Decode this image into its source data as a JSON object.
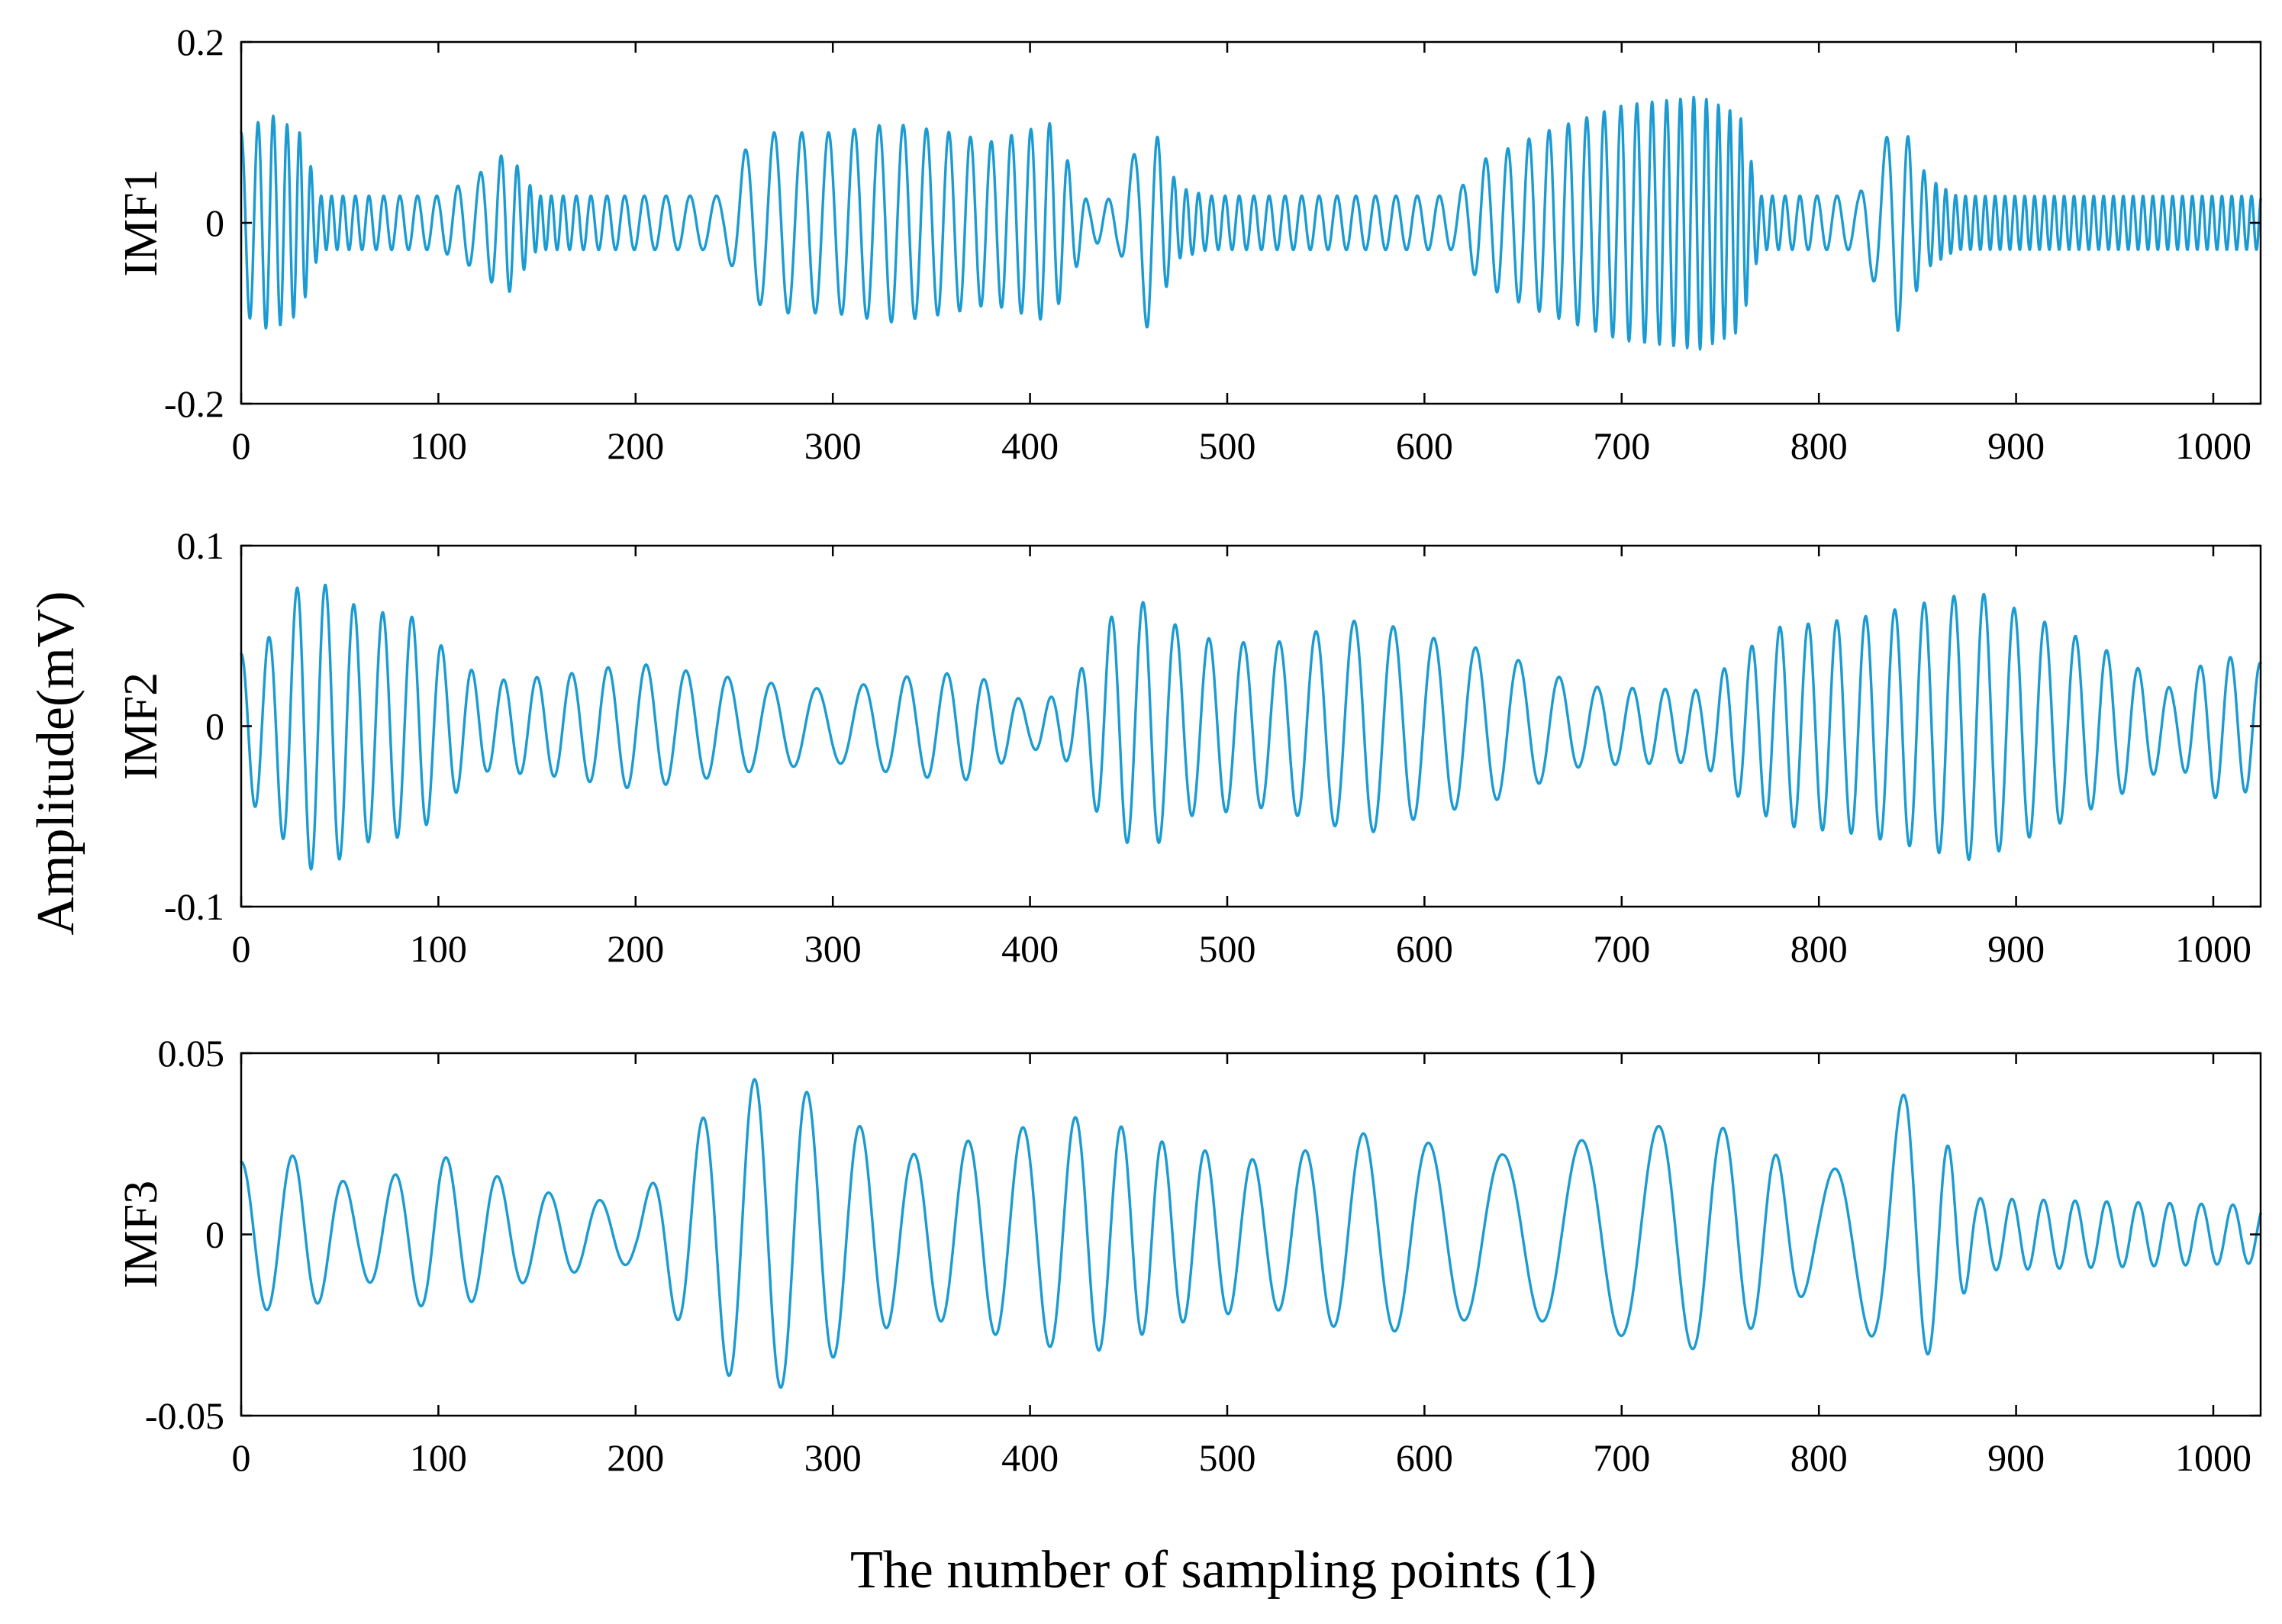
{
  "chart_data": [
    {
      "type": "line",
      "panel": "IMF1",
      "ylabel": "IMF1",
      "xlim": [
        0,
        1024
      ],
      "ylim": [
        -0.2,
        0.2
      ],
      "yticks": [
        -0.2,
        0,
        0.2
      ],
      "ytick_labels": [
        "-0.2",
        "0",
        "0.2"
      ],
      "xticks": [
        0,
        100,
        200,
        300,
        400,
        500,
        600,
        700,
        800,
        900,
        1000
      ],
      "xtick_labels": [
        "0",
        "100",
        "200",
        "300",
        "400",
        "500",
        "600",
        "700",
        "800",
        "900",
        "1000"
      ],
      "series": [
        {
          "name": "IMF1",
          "envelope": [
            [
              0,
              0.1
            ],
            [
              15,
              0.12
            ],
            [
              30,
              0.1
            ],
            [
              40,
              0.03
            ],
            [
              100,
              0.03
            ],
            [
              118,
              0.05
            ],
            [
              135,
              0.08
            ],
            [
              150,
              0.03
            ],
            [
              245,
              0.03
            ],
            [
              255,
              0.08
            ],
            [
              270,
              0.1
            ],
            [
              300,
              0.1
            ],
            [
              330,
              0.11
            ],
            [
              360,
              0.1
            ],
            [
              380,
              0.09
            ],
            [
              410,
              0.11
            ],
            [
              430,
              0.02
            ],
            [
              445,
              0.03
            ],
            [
              460,
              0.12
            ],
            [
              475,
              0.04
            ],
            [
              490,
              0.03
            ],
            [
              615,
              0.03
            ],
            [
              630,
              0.07
            ],
            [
              660,
              0.1
            ],
            [
              700,
              0.13
            ],
            [
              740,
              0.14
            ],
            [
              760,
              0.12
            ],
            [
              770,
              0.03
            ],
            [
              820,
              0.03
            ],
            [
              840,
              0.12
            ],
            [
              855,
              0.05
            ],
            [
              870,
              0.03
            ],
            [
              1024,
              0.03
            ]
          ],
          "period_segments": [
            [
              0,
              9
            ],
            [
              40,
              5
            ],
            [
              120,
              12
            ],
            [
              150,
              5
            ],
            [
              250,
              15
            ],
            [
              420,
              9
            ],
            [
              455,
              14
            ],
            [
              475,
              6
            ],
            [
              620,
              12
            ],
            [
              770,
              5
            ],
            [
              830,
              14
            ],
            [
              860,
              5
            ],
            [
              1024,
              5
            ]
          ]
        }
      ]
    },
    {
      "type": "line",
      "panel": "IMF2",
      "ylabel": "IMF2",
      "xlim": [
        0,
        1024
      ],
      "ylim": [
        -0.1,
        0.1
      ],
      "yticks": [
        -0.1,
        0,
        0.1
      ],
      "ytick_labels": [
        "-0.1",
        "0",
        "0.1"
      ],
      "xticks": [
        0,
        100,
        200,
        300,
        400,
        500,
        600,
        700,
        800,
        900,
        1000
      ],
      "xtick_labels": [
        "0",
        "100",
        "200",
        "300",
        "400",
        "500",
        "600",
        "700",
        "800",
        "900",
        "1000"
      ],
      "series": [
        {
          "name": "IMF2",
          "envelope": [
            [
              0,
              0.04
            ],
            [
              15,
              0.05
            ],
            [
              30,
              0.08
            ],
            [
              45,
              0.078
            ],
            [
              60,
              0.065
            ],
            [
              90,
              0.06
            ],
            [
              105,
              0.04
            ],
            [
              125,
              0.025
            ],
            [
              160,
              0.028
            ],
            [
              200,
              0.035
            ],
            [
              230,
              0.03
            ],
            [
              260,
              0.025
            ],
            [
              300,
              0.02
            ],
            [
              340,
              0.028
            ],
            [
              370,
              0.03
            ],
            [
              400,
              0.012
            ],
            [
              420,
              0.02
            ],
            [
              440,
              0.06
            ],
            [
              460,
              0.07
            ],
            [
              480,
              0.05
            ],
            [
              520,
              0.045
            ],
            [
              570,
              0.06
            ],
            [
              600,
              0.05
            ],
            [
              640,
              0.04
            ],
            [
              680,
              0.022
            ],
            [
              740,
              0.02
            ],
            [
              760,
              0.04
            ],
            [
              780,
              0.055
            ],
            [
              820,
              0.06
            ],
            [
              860,
              0.07
            ],
            [
              880,
              0.075
            ],
            [
              920,
              0.055
            ],
            [
              950,
              0.04
            ],
            [
              980,
              0.02
            ],
            [
              1000,
              0.04
            ],
            [
              1024,
              0.035
            ]
          ],
          "period_segments": [
            [
              0,
              14
            ],
            [
              100,
              15
            ],
            [
              300,
              24
            ],
            [
              420,
              15
            ],
            [
              640,
              22
            ],
            [
              750,
              14
            ],
            [
              960,
              16
            ],
            [
              1024,
              15
            ]
          ]
        }
      ]
    },
    {
      "type": "line",
      "panel": "IMF3",
      "ylabel": "IMF3",
      "xlim": [
        0,
        1024
      ],
      "ylim": [
        -0.05,
        0.05
      ],
      "yticks": [
        -0.05,
        0,
        0.05
      ],
      "ytick_labels": [
        "-0.05",
        "0",
        "0.05"
      ],
      "xticks": [
        0,
        100,
        200,
        300,
        400,
        500,
        600,
        700,
        800,
        900,
        1000
      ],
      "xtick_labels": [
        "0",
        "100",
        "200",
        "300",
        "400",
        "500",
        "600",
        "700",
        "800",
        "900",
        "1000"
      ],
      "series": [
        {
          "name": "IMF3",
          "envelope": [
            [
              0,
              0.02
            ],
            [
              30,
              0.022
            ],
            [
              60,
              0.012
            ],
            [
              100,
              0.022
            ],
            [
              150,
              0.012
            ],
            [
              200,
              0.008
            ],
            [
              230,
              0.03
            ],
            [
              255,
              0.043
            ],
            [
              280,
              0.042
            ],
            [
              300,
              0.034
            ],
            [
              340,
              0.022
            ],
            [
              400,
              0.03
            ],
            [
              430,
              0.033
            ],
            [
              470,
              0.025
            ],
            [
              520,
              0.02
            ],
            [
              570,
              0.028
            ],
            [
              640,
              0.022
            ],
            [
              700,
              0.028
            ],
            [
              740,
              0.032
            ],
            [
              770,
              0.025
            ],
            [
              800,
              0.014
            ],
            [
              830,
              0.03
            ],
            [
              845,
              0.04
            ],
            [
              860,
              0.03
            ],
            [
              880,
              0.01
            ],
            [
              1024,
              0.008
            ]
          ],
          "period_segments": [
            [
              0,
              26
            ],
            [
              220,
              26
            ],
            [
              400,
              28
            ],
            [
              460,
              20
            ],
            [
              560,
              30
            ],
            [
              640,
              40
            ],
            [
              700,
              40
            ],
            [
              780,
              24
            ],
            [
              820,
              40
            ],
            [
              870,
              16
            ],
            [
              1024,
              16
            ]
          ]
        }
      ]
    }
  ],
  "figure": {
    "ylabel": "Amplitude(mV)",
    "xlabel": "The number of sampling points (1)",
    "line_color": "#1b9bd1"
  }
}
